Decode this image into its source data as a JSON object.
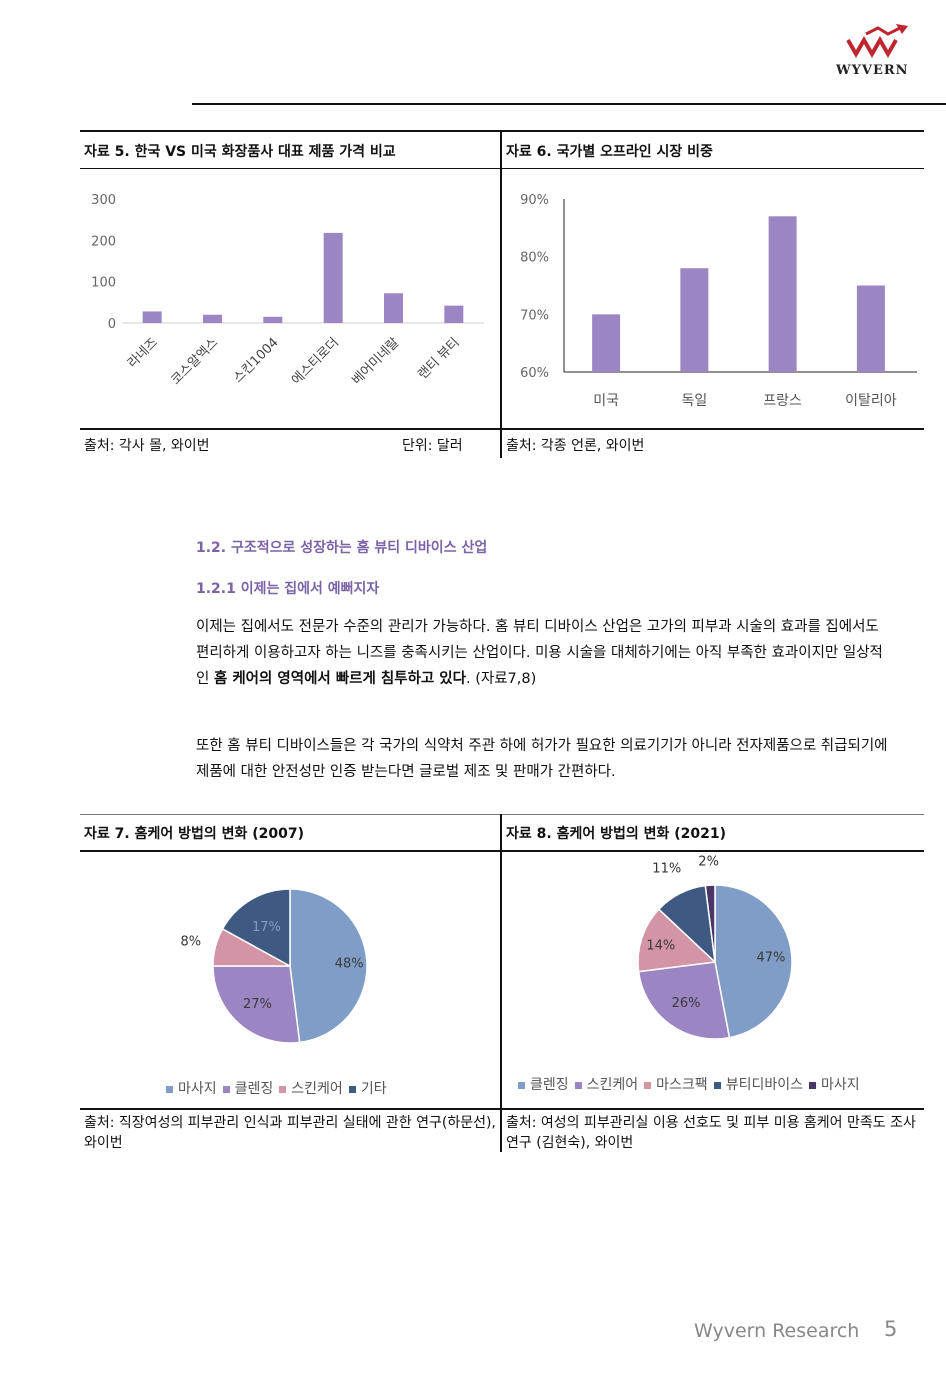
{
  "header": {
    "logo_text": "WYVERN"
  },
  "figure5": {
    "title": "자료 5. 한국 VS 미국 화장품사 대표 제품 가격 비교",
    "source": "출처: 각사 몰, 와이번",
    "unit": "단위:  달러"
  },
  "figure6": {
    "title": "자료 6. 국가별 오프라인 시장 비중",
    "source": "출처: 각종 언론, 와이번"
  },
  "section": {
    "heading": "1.2. 구조적으로 성장하는 홈 뷰티 디바이스 산업",
    "subheading": "1.2.1 이제는 집에서 예뻐지자",
    "para1_plain": "이제는 집에서도 전문가 수준의 관리가 가능하다. 홈 뷰티 디바이스 산업은 고가의 피부과 시술의 효과를 집에서도 편리하게 이용하고자 하는 니즈를 충족시키는 산업이다. 미용 시술을 대체하기에는 아직 부족한 효과이지만 일상적인 ",
    "para1_bold": "홈 케어의 영역에서 빠르게 침투하고 있다",
    "para1_end": ". (자료7,8)",
    "para2": "또한 홈 뷰티 디바이스들은 각 국가의 식약처 주관 하에 허가가 필요한 의료기기가 아니라 전자제품으로 취급되기에 제품에 대한 안전성만 인증 받는다면 글로벌 제조 및 판매가 간편하다."
  },
  "figure7": {
    "title": "자료 7. 홈케어 방법의 변화 (2007)",
    "source": "출처: 직장여성의 피부관리 인식과 피부관리 실태에 관한 연구(하문선), 와이번"
  },
  "figure8": {
    "title": "자료 8. 홈케어 방법의 변화 (2021)",
    "source": "출처: 여성의 피부관리실 이용 선호도 및 피부 미용 홈케어 만족도 조사 연구 (김현숙), 와이번"
  },
  "footer": {
    "brand": "Wyvern Research",
    "page": "5"
  },
  "chart_data": [
    {
      "type": "bar",
      "categories": [
        "라네즈",
        "코스알엑스",
        "스킨1004",
        "에스티로더",
        "베어미네랄",
        "랜티 뷰티"
      ],
      "values": [
        28,
        20,
        15,
        218,
        72,
        42
      ],
      "ylim": [
        0,
        300
      ],
      "yticks": [
        "0",
        "100",
        "200",
        "300"
      ],
      "grid": false,
      "color": "#9b85c2"
    },
    {
      "type": "bar",
      "categories": [
        "미국",
        "독일",
        "프랑스",
        "이탈리아"
      ],
      "values": [
        70,
        78,
        87,
        75
      ],
      "ylim": [
        60,
        90
      ],
      "yticks": [
        "60%",
        "70%",
        "80%",
        "90%"
      ],
      "grid": false,
      "color": "#9b85c2"
    },
    {
      "type": "pie",
      "labels": [
        "마사지",
        "클렌징",
        "스킨케어",
        "기타"
      ],
      "values": [
        48,
        27,
        8,
        17
      ],
      "value_labels": [
        "48%",
        "27%",
        "8%",
        "17%"
      ],
      "colors": [
        "#7f9dc6",
        "#9b85c2",
        "#d394a6",
        "#3f5a82"
      ],
      "legend": "bottom"
    },
    {
      "type": "pie",
      "labels": [
        "클렌징",
        "스킨케어",
        "마스크팩",
        "뷰티디바이스",
        "마사지"
      ],
      "values": [
        47,
        26,
        14,
        11,
        2
      ],
      "value_labels": [
        "47%",
        "26%",
        "14%",
        "11%",
        "2%"
      ],
      "colors": [
        "#7f9dc6",
        "#9b85c2",
        "#d394a6",
        "#3f5a82",
        "#4b3568"
      ],
      "legend": "bottom"
    }
  ]
}
